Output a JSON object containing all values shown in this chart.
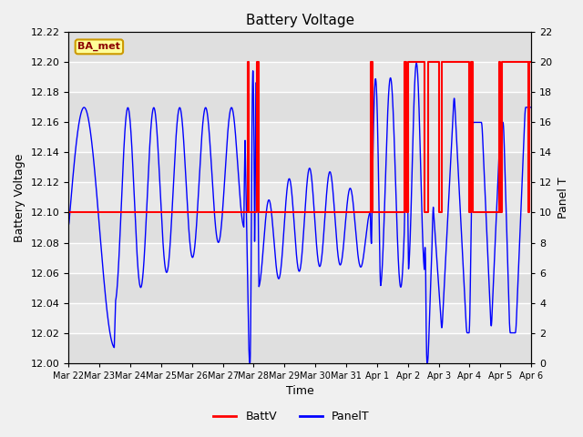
{
  "title": "Battery Voltage",
  "xlabel": "Time",
  "ylabel_left": "Battery Voltage",
  "ylabel_right": "Panel T",
  "ylim_left": [
    12.0,
    12.22
  ],
  "ylim_right": [
    0,
    22
  ],
  "yticks_left": [
    12.0,
    12.02,
    12.04,
    12.06,
    12.08,
    12.1,
    12.12,
    12.14,
    12.16,
    12.18,
    12.2,
    12.22
  ],
  "yticks_right": [
    0,
    2,
    4,
    6,
    8,
    10,
    12,
    14,
    16,
    18,
    20,
    22
  ],
  "xtick_labels": [
    "Mar 22",
    "Mar 23",
    "Mar 24",
    "Mar 25",
    "Mar 26",
    "Mar 27",
    "Mar 28",
    "Mar 29",
    "Mar 30",
    "Mar 31",
    "Apr 1",
    "Apr 2",
    "Apr 3",
    "Apr 4",
    "Apr 5",
    "Apr 6"
  ],
  "bg_color": "#f0f0f0",
  "plot_bg_color": "#e8e8e8",
  "grid_color": "#ffffff",
  "battv_color": "#ff0000",
  "panelt_color": "#0000ff",
  "legend_battv": "BattV",
  "legend_panelt": "PanelT",
  "watermark_text": "BA_met",
  "watermark_bg": "#ffff99",
  "watermark_border": "#cc9900",
  "battv_x": [
    0,
    5.8,
    5.8,
    5.85,
    5.85,
    6.1,
    6.1,
    6.15,
    6.15,
    9.8,
    9.8,
    9.85,
    9.85,
    10.9,
    10.9,
    10.95,
    10.95,
    11.0,
    11.0,
    11.55,
    11.55,
    11.65,
    11.65,
    12.0,
    12.0,
    12.1,
    12.1,
    13.0,
    13.0,
    13.05,
    13.05,
    13.1,
    13.1,
    13.95,
    13.95,
    14.0,
    14.0,
    14.05,
    14.05,
    14.9,
    14.9,
    14.95,
    14.95,
    15.0
  ],
  "battv_y": [
    12.1,
    12.1,
    12.2,
    12.2,
    12.1,
    12.1,
    12.2,
    12.2,
    12.1,
    12.1,
    12.2,
    12.2,
    12.1,
    12.1,
    12.2,
    12.2,
    12.1,
    12.1,
    12.2,
    12.2,
    12.1,
    12.1,
    12.2,
    12.2,
    12.1,
    12.1,
    12.2,
    12.2,
    12.1,
    12.1,
    12.2,
    12.2,
    12.1,
    12.1,
    12.2,
    12.2,
    12.1,
    12.1,
    12.2,
    12.2,
    12.1,
    12.1,
    12.2,
    12.2
  ]
}
